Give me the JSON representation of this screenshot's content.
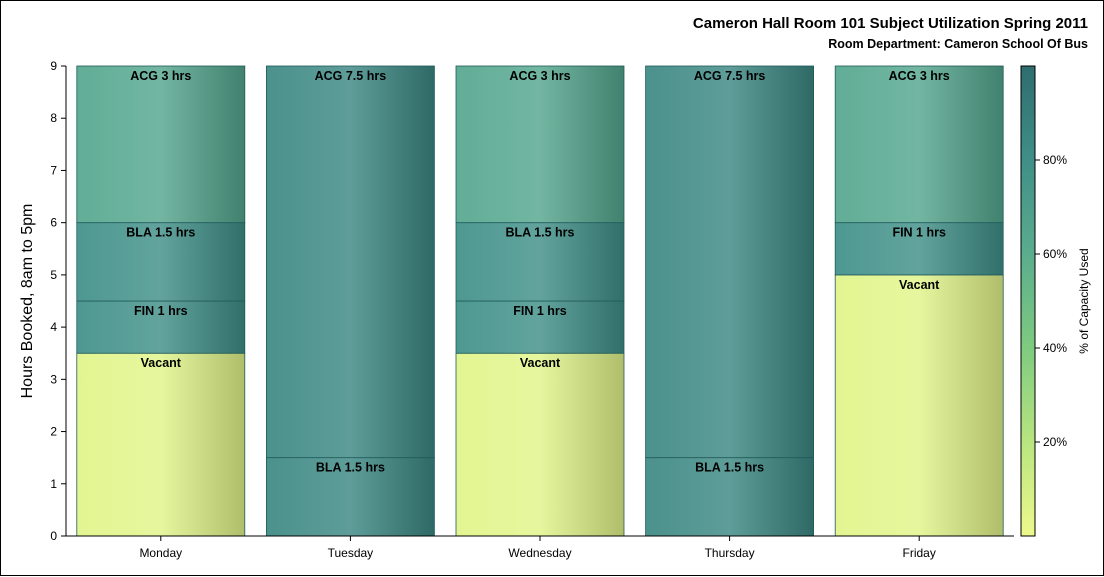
{
  "chart_data": {
    "type": "bar",
    "stacked": true,
    "title": "Cameron Hall Room 101 Subject Utilization Spring 2011",
    "subtitle": "Room Department:  Cameron School Of Bus",
    "xlabel": "",
    "ylabel": "Hours Booked, 8am to 5pm",
    "ylim": [
      0,
      9
    ],
    "yticks": [
      "0",
      "1",
      "2",
      "3",
      "4",
      "5",
      "6",
      "7",
      "8",
      "9"
    ],
    "grid": false,
    "categories": [
      "Monday",
      "Tuesday",
      "Wednesday",
      "Thursday",
      "Friday"
    ],
    "bars": [
      {
        "category": "Monday",
        "segments": [
          {
            "label": "Vacant",
            "from": 0,
            "to": 3.5,
            "capacity": 5
          },
          {
            "label": "FIN 1 hrs",
            "from": 3.5,
            "to": 4.5,
            "capacity": 80
          },
          {
            "label": "BLA 1.5 hrs",
            "from": 4.5,
            "to": 6,
            "capacity": 80
          },
          {
            "label": "ACG 3 hrs",
            "from": 6,
            "to": 9,
            "capacity": 65
          }
        ]
      },
      {
        "category": "Tuesday",
        "segments": [
          {
            "label": "BLA 1.5 hrs",
            "from": 0,
            "to": 1.5,
            "capacity": 85
          },
          {
            "label": "ACG 7.5 hrs",
            "from": 1.5,
            "to": 9,
            "capacity": 85
          }
        ]
      },
      {
        "category": "Wednesday",
        "segments": [
          {
            "label": "Vacant",
            "from": 0,
            "to": 3.5,
            "capacity": 5
          },
          {
            "label": "FIN 1 hrs",
            "from": 3.5,
            "to": 4.5,
            "capacity": 80
          },
          {
            "label": "BLA 1.5 hrs",
            "from": 4.5,
            "to": 6,
            "capacity": 80
          },
          {
            "label": "ACG 3 hrs",
            "from": 6,
            "to": 9,
            "capacity": 65
          }
        ]
      },
      {
        "category": "Thursday",
        "segments": [
          {
            "label": "BLA 1.5 hrs",
            "from": 0,
            "to": 1.5,
            "capacity": 85
          },
          {
            "label": "ACG 7.5 hrs",
            "from": 1.5,
            "to": 9,
            "capacity": 85
          }
        ]
      },
      {
        "category": "Friday",
        "segments": [
          {
            "label": "Vacant",
            "from": 0,
            "to": 5,
            "capacity": 5
          },
          {
            "label": "FIN 1 hrs",
            "from": 5,
            "to": 6,
            "capacity": 80
          },
          {
            "label": "ACG 3 hrs",
            "from": 6,
            "to": 9,
            "capacity": 65
          }
        ]
      }
    ],
    "colorbar": {
      "label": "% of Capacity Used",
      "range": [
        0,
        100
      ],
      "ticks": [
        {
          "value": 20,
          "label": "20%"
        },
        {
          "value": 40,
          "label": "40%"
        },
        {
          "value": 60,
          "label": "60%"
        },
        {
          "value": 80,
          "label": "80%"
        }
      ],
      "colors": [
        "#eef98c",
        "#b8e57f",
        "#7ecb80",
        "#5aad8e",
        "#3f8f88",
        "#2e6d6e"
      ]
    },
    "segment_line_color": "#1f5a5a"
  }
}
